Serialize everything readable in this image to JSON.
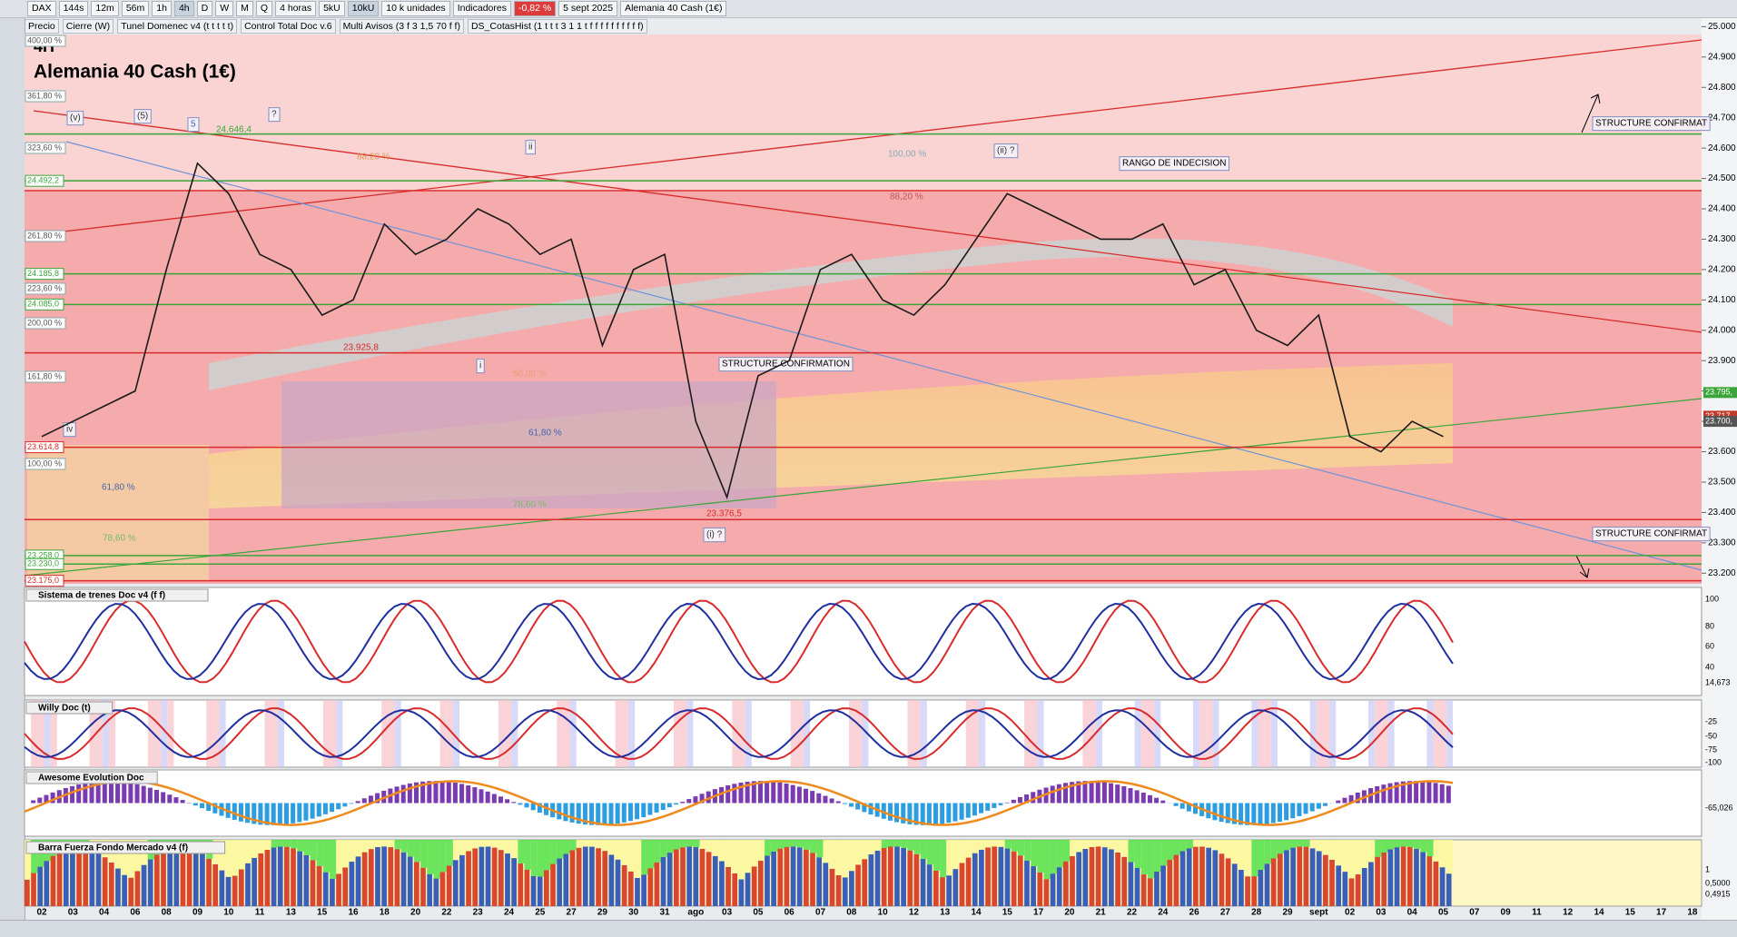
{
  "toolbar": {
    "symbol": "DAX",
    "timeframes": [
      "144s",
      "12m",
      "56m",
      "1h",
      "4h",
      "D",
      "W",
      "M",
      "Q"
    ],
    "period": "4 horas",
    "units": [
      "5kU",
      "10kU"
    ],
    "unit_select": "10 k unidades",
    "indicators": "Indicadores",
    "change": "-0,82 %",
    "date": "5 sept 2025",
    "instrument": "Alemania 40 Cash (1€)"
  },
  "indicator_bar": [
    "Precio",
    "Cierre (W)",
    "Tunel Domenec v4 (t t t t t)",
    "Control Total Doc v.6",
    "Multi Avisos (3 f 3 1,5 70 f f)",
    "DS_CotasHist (1 t t t 3 1 1 t f f f f f f f f f f)"
  ],
  "chart_data": {
    "type": "line",
    "title": "Alemania 40 Cash (1€)",
    "timeframe_label": "4H",
    "categories": [
      "02",
      "03",
      "04",
      "06",
      "08",
      "09",
      "10",
      "11",
      "13",
      "15",
      "16",
      "18",
      "20",
      "22",
      "23",
      "24",
      "25",
      "27",
      "29",
      "30",
      "31",
      "ago",
      "03",
      "05",
      "06",
      "07",
      "08",
      "10",
      "12",
      "13",
      "14",
      "15",
      "17",
      "20",
      "21",
      "22",
      "24",
      "26",
      "27",
      "28",
      "29",
      "sept",
      "02",
      "03",
      "04",
      "05",
      "07",
      "09",
      "11",
      "12",
      "14",
      "15",
      "17",
      "18"
    ],
    "series": [
      {
        "name": "Precio",
        "color": "#1a1a1a",
        "values": [
          23650,
          23700,
          23750,
          23800,
          24200,
          24550,
          24450,
          24250,
          24200,
          24050,
          24100,
          24350,
          24250,
          24300,
          24400,
          24350,
          24250,
          24300,
          23950,
          24200,
          24250,
          23700,
          23450,
          23850,
          23900,
          24200,
          24250,
          24100,
          24050,
          24150,
          24300,
          24450,
          24400,
          24350,
          24300,
          24300,
          24350,
          24150,
          24200,
          24000,
          23950,
          24050,
          23650,
          23600,
          23700,
          23650,
          null,
          null,
          null,
          null,
          null,
          null,
          null,
          null
        ]
      }
    ],
    "ylim": [
      23165,
      25028
    ],
    "yticks": [
      {
        "value": 25000,
        "label": "25.000"
      },
      {
        "value": 24900,
        "label": "24.900"
      },
      {
        "value": 24800,
        "label": "24.800"
      },
      {
        "value": 24700,
        "label": "24.700"
      },
      {
        "value": 24600,
        "label": "24.600"
      },
      {
        "value": 24500,
        "label": "24.500"
      },
      {
        "value": 24400,
        "label": "24.400"
      },
      {
        "value": 24300,
        "label": "24.300"
      },
      {
        "value": 24200,
        "label": "24.200"
      },
      {
        "value": 24100,
        "label": "24.100"
      },
      {
        "value": 24000,
        "label": "24.000"
      },
      {
        "value": 23900,
        "label": "23.900"
      },
      {
        "value": 23800,
        "label": "23.800"
      },
      {
        "value": 23700,
        "label": "23.700"
      },
      {
        "value": 23600,
        "label": "23.600"
      },
      {
        "value": 23500,
        "label": "23.500"
      },
      {
        "value": 23400,
        "label": "23.400"
      },
      {
        "value": 23300,
        "label": "23.300"
      },
      {
        "value": 23200,
        "label": "23.200"
      }
    ],
    "levels": [
      {
        "value": 24646.4,
        "color": "#3aa63a"
      },
      {
        "value": 24492.2,
        "label": "24.492,2",
        "color": "#3aa63a"
      },
      {
        "value": 24460,
        "color": "#d92b2b"
      },
      {
        "value": 24185.8,
        "label": "24.185,8",
        "color": "#3aa63a"
      },
      {
        "value": 24085,
        "label": "24.085,0",
        "color": "#3aa63a"
      },
      {
        "value": 23925.8,
        "color": "#d92b2b"
      },
      {
        "value": 23614.8,
        "label": "23.614,8",
        "color": "#d92b2b"
      },
      {
        "value": 23376.5,
        "color": "#d92b2b"
      },
      {
        "value": 23258,
        "label": "23.258,0",
        "color": "#3aa63a"
      },
      {
        "value": 23230,
        "label": "23.230,0",
        "color": "#3aa63a"
      },
      {
        "value": 23175,
        "label": "23.175,0",
        "color": "#d92b2b"
      }
    ],
    "price_tags": [
      {
        "value": 23795,
        "label": "23.795,",
        "color": "#3aa63a"
      },
      {
        "value": 23717,
        "label": "23.717,",
        "color": "#c0392b"
      },
      {
        "value": 23700,
        "label": "23.700,",
        "color": "#555555"
      }
    ],
    "fib_labels": [
      "400,00 %",
      "361,80 %",
      "323,60 %",
      "261,80 %",
      "223,60 %",
      "200,00 %",
      "161,80 %",
      "100,00 %"
    ],
    "annotations": [
      "24.646,4",
      "23.925,8",
      "23.376,5",
      "88,20 %",
      "100,00 %",
      "88,20 %",
      "50,00 %",
      "61,80 %",
      "61,80 %",
      "78,60 %",
      "78,60 %",
      "RANGO DE INDECISION",
      "STRUCTURE CONFIRMATION",
      "STRUCTURE CONFIRMAT",
      "STRUCTURE CONFIRMAT",
      "(v)",
      "(5)",
      "5",
      "?",
      "ii",
      "(ii) ?",
      "i",
      "iv",
      "(i) ?"
    ]
  },
  "panels": [
    {
      "title": "Sistema de trenes Doc v4 (f f)",
      "axis_labels": [
        "100",
        "80",
        "60",
        "40",
        "14,673"
      ]
    },
    {
      "title": "Willy Doc (t)",
      "axis_labels": [
        "-25",
        "-50",
        "-75",
        "-100"
      ]
    },
    {
      "title": "Awesome Evolution Doc",
      "axis_labels": [
        "-65,026"
      ]
    },
    {
      "title": "Barra Fuerza Fondo Mercado v4 (f)",
      "axis_labels": [
        "1",
        "0,5000",
        "0,4915"
      ]
    }
  ]
}
